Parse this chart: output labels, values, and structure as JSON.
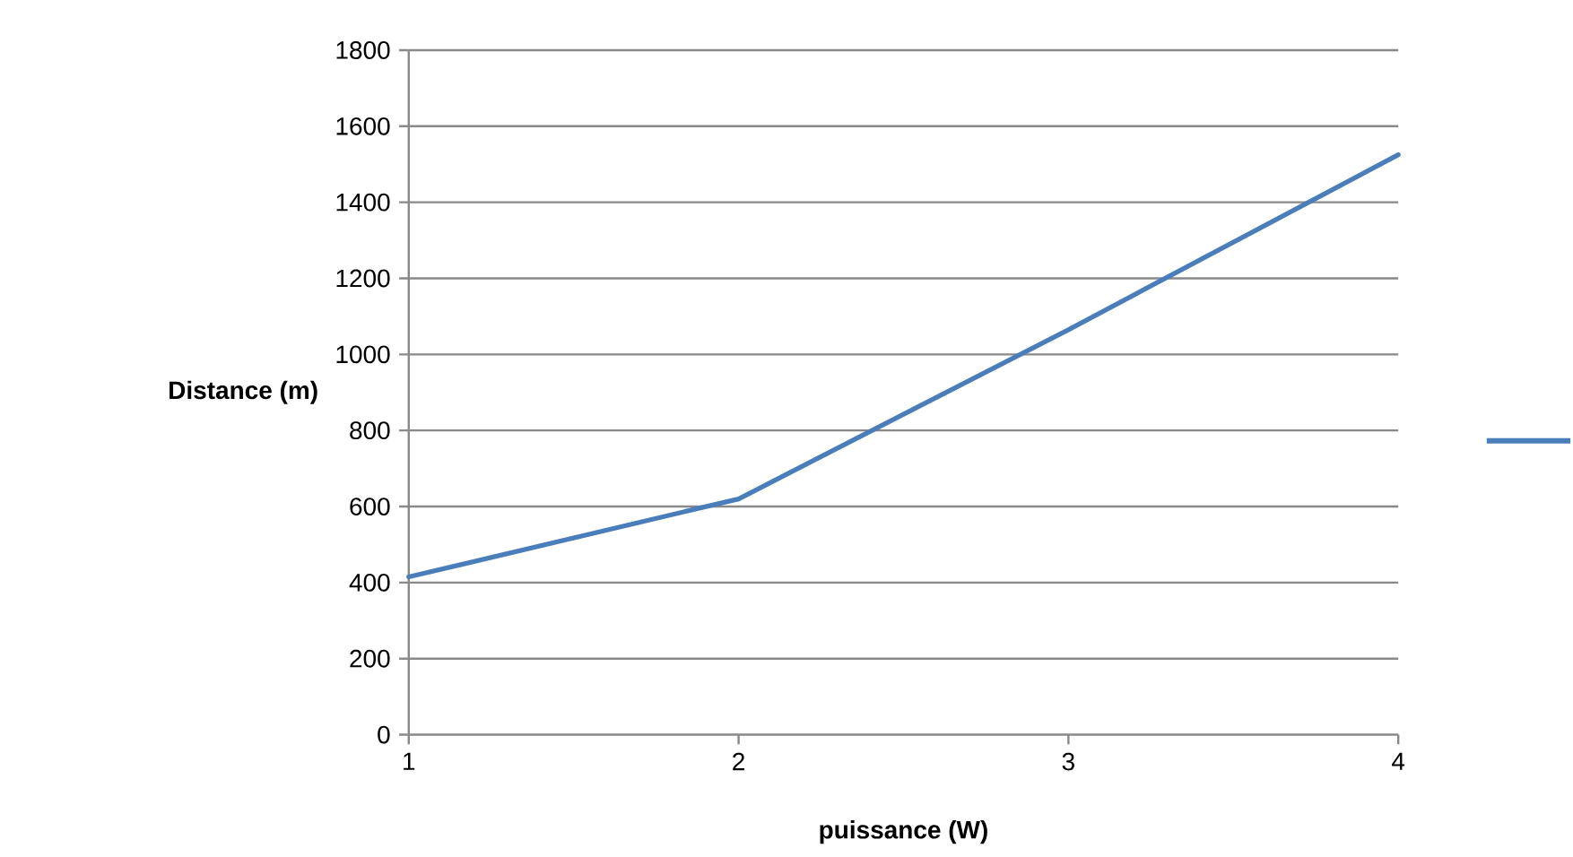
{
  "chart_data": {
    "type": "line",
    "xlabel": "puissance (W)",
    "ylabel": "Distance (m)",
    "x": [
      1,
      2,
      3,
      4
    ],
    "series": [
      {
        "color": "#4a7ebb",
        "values": [
          415,
          620,
          1065,
          1525
        ]
      }
    ],
    "xlim": [
      1,
      4
    ],
    "xticks": [
      1,
      2,
      3,
      4
    ],
    "ylim": [
      0,
      1800
    ],
    "yticks": [
      0,
      200,
      400,
      600,
      800,
      1000,
      1200,
      1400,
      1600,
      1800
    ],
    "grid": "y",
    "marker": "none",
    "line_style": "solid"
  }
}
